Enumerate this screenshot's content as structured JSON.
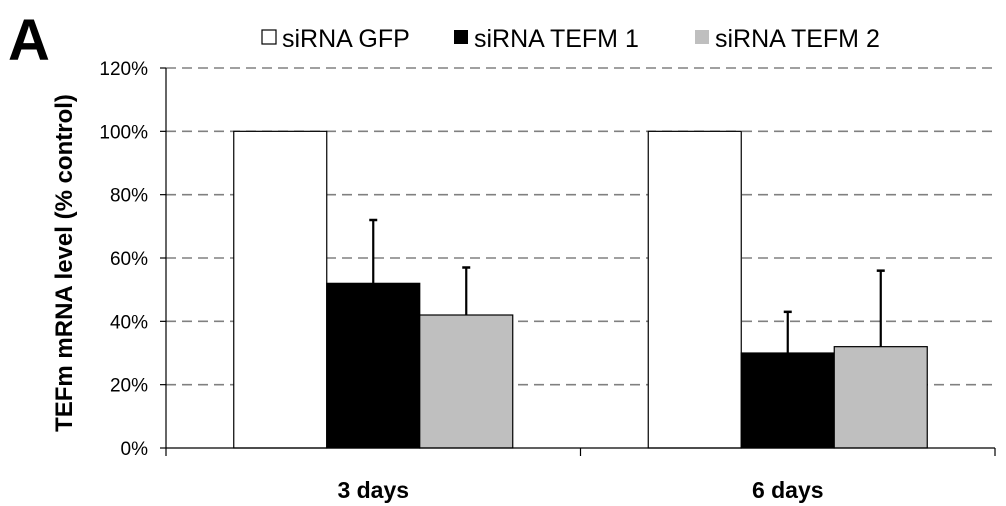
{
  "panel_label": "A",
  "colors": {
    "siRNA GFP": "#ffffff",
    "siRNA TEFM 1": "#000000",
    "siRNA TEFM 2": "#bfbfbf",
    "grid": "#808080",
    "axis": "#000000"
  },
  "chart_data": {
    "type": "bar",
    "title": "",
    "xlabel": "",
    "ylabel": "TEFm mRNA level (% control)",
    "categories": [
      "3 days",
      "6 days"
    ],
    "series": [
      {
        "name": "siRNA GFP",
        "values": [
          100,
          100
        ],
        "errors": [
          null,
          null
        ]
      },
      {
        "name": "siRNA TEFM 1",
        "values": [
          52,
          30
        ],
        "errors": [
          20,
          13
        ]
      },
      {
        "name": "siRNA TEFM 2",
        "values": [
          42,
          32
        ],
        "errors": [
          15,
          24
        ]
      }
    ],
    "ylim": [
      0,
      120
    ],
    "yticks": [
      0,
      20,
      40,
      60,
      80,
      100,
      120
    ],
    "ytick_labels": [
      "0%",
      "20%",
      "40%",
      "60%",
      "80%",
      "100%",
      "120%"
    ],
    "grid": true,
    "grid_style": "dashed",
    "legend_position": "top",
    "legend_labels": [
      "siRNA GFP",
      "siRNA TEFM 1",
      "siRNA TEFM 2"
    ]
  }
}
